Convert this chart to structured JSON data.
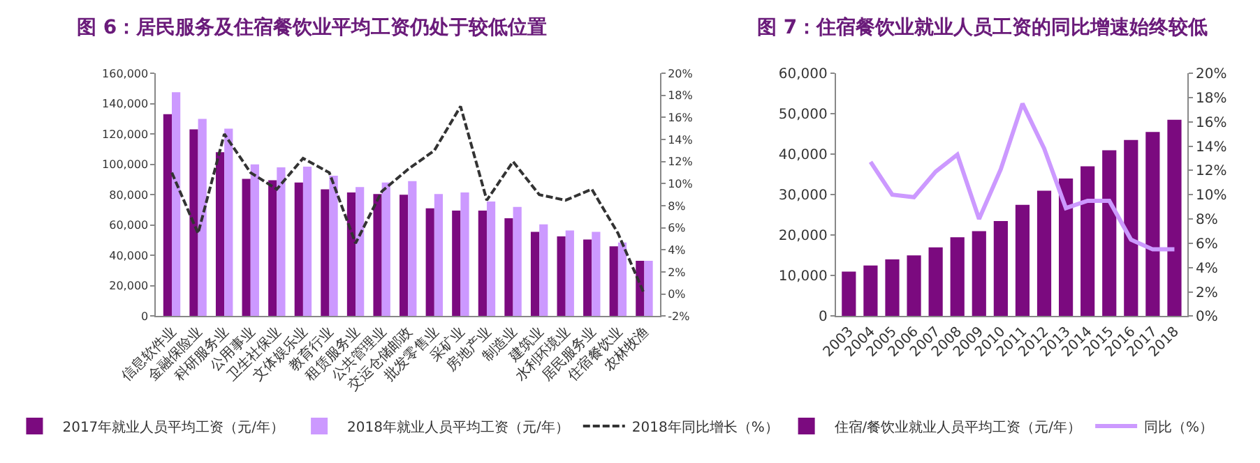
{
  "chart_data": [
    {
      "type": "bar",
      "title": "图 6：居民服务及住宿餐饮业平均工资仍处于较低位置",
      "categories": [
        "信息软件业",
        "金融保险业",
        "科研服务业",
        "公用事业",
        "卫生社保业",
        "文体娱乐业",
        "教育行业",
        "租赁服务业",
        "公共管理业",
        "交运仓储邮政",
        "批发零售业",
        "采矿业",
        "房地产业",
        "制造业",
        "建筑业",
        "水利环境业",
        "居民服务业",
        "住宿餐饮业",
        "农林牧渔"
      ],
      "series": [
        {
          "name": "2017年就业人员平均工资（元/年）",
          "color": "#7b0a7f",
          "values": [
            133000,
            123000,
            108000,
            90500,
            89500,
            88000,
            83500,
            81500,
            80500,
            80000,
            71000,
            69500,
            69500,
            64500,
            55500,
            52500,
            50500,
            46000,
            36500
          ]
        },
        {
          "name": "2018年就业人员平均工资（元/年）",
          "color": "#cc99ff",
          "values": [
            147500,
            130000,
            123500,
            100000,
            98000,
            98500,
            92500,
            85000,
            88000,
            89000,
            80500,
            81500,
            75500,
            72000,
            60500,
            56500,
            55500,
            48500,
            36500
          ]
        },
        {
          "name": "2018年同比增长（%）",
          "type": "line",
          "axis": "y2",
          "color": "#333333",
          "line_style": "dashed",
          "values": [
            11,
            5.5,
            14.5,
            11,
            9.5,
            12.3,
            11,
            4.6,
            9.3,
            11.3,
            13,
            17,
            8.5,
            12,
            9,
            8.5,
            9.5,
            5.5,
            0
          ]
        }
      ],
      "ylim": [
        0,
        160000
      ],
      "yticks": [
        0,
        {
          "value": 20000,
          "label": "20,000"
        },
        {
          "value": 40000,
          "label": "40,000"
        },
        {
          "value": 60000,
          "label": "60,000"
        },
        {
          "value": 80000,
          "label": "80,000"
        },
        {
          "value": 100000,
          "label": "100,000"
        },
        {
          "value": 120000,
          "label": "120,000"
        },
        {
          "value": 140000,
          "label": "140,000"
        },
        {
          "value": 160000,
          "label": "160,000"
        }
      ],
      "y2lim": [
        -2,
        20
      ],
      "y2ticks": [
        {
          "value": -2,
          "label": "-2%"
        },
        {
          "value": 0,
          "label": "0%"
        },
        {
          "value": 2,
          "label": "2%"
        },
        {
          "value": 4,
          "label": "4%"
        },
        {
          "value": 6,
          "label": "6%"
        },
        {
          "value": 8,
          "label": "8%"
        },
        {
          "value": 10,
          "label": "10%"
        },
        {
          "value": 12,
          "label": "12%"
        },
        {
          "value": 14,
          "label": "14%"
        },
        {
          "value": 16,
          "label": "16%"
        },
        {
          "value": 18,
          "label": "18%"
        },
        {
          "value": 20,
          "label": "20%"
        }
      ],
      "legend": "bottom"
    },
    {
      "type": "bar",
      "title": "图 7：住宿餐饮业就业人员工资的同比增速始终较低",
      "categories": [
        "2003",
        "2004",
        "2005",
        "2006",
        "2007",
        "2008",
        "2009",
        "2010",
        "2011",
        "2012",
        "2013",
        "2014",
        "2015",
        "2016",
        "2017",
        "2018"
      ],
      "series": [
        {
          "name": "住宿/餐饮业就业人员平均工资（元/年）",
          "color": "#7b0a7f",
          "values": [
            11000,
            12500,
            14000,
            15000,
            17000,
            19500,
            21000,
            23500,
            27500,
            31000,
            34000,
            37000,
            41000,
            43500,
            45500,
            48500
          ]
        },
        {
          "name": "同比（%）",
          "type": "line",
          "axis": "y2",
          "color": "#cc99ff",
          "line_style": "solid",
          "values": [
            null,
            12.7,
            10,
            9.8,
            11.9,
            13.3,
            8,
            12.1,
            17.5,
            13.8,
            8.9,
            9.5,
            9.5,
            6.3,
            5.5,
            5.5
          ]
        }
      ],
      "ylim": [
        0,
        60000
      ],
      "yticks": [
        0,
        {
          "value": 10000,
          "label": "10,000"
        },
        {
          "value": 20000,
          "label": "20,000"
        },
        {
          "value": 30000,
          "label": "30,000"
        },
        {
          "value": 40000,
          "label": "40,000"
        },
        {
          "value": 50000,
          "label": "50,000"
        },
        {
          "value": 60000,
          "label": "60,000"
        }
      ],
      "y2lim": [
        0,
        20
      ],
      "y2ticks": [
        {
          "value": 0,
          "label": "0%"
        },
        {
          "value": 2,
          "label": "2%"
        },
        {
          "value": 4,
          "label": "4%"
        },
        {
          "value": 6,
          "label": "6%"
        },
        {
          "value": 8,
          "label": "8%"
        },
        {
          "value": 10,
          "label": "10%"
        },
        {
          "value": 12,
          "label": "12%"
        },
        {
          "value": 14,
          "label": "14%"
        },
        {
          "value": 16,
          "label": "16%"
        },
        {
          "value": 18,
          "label": "18%"
        },
        {
          "value": 20,
          "label": "20%"
        }
      ],
      "legend": "bottom"
    }
  ]
}
